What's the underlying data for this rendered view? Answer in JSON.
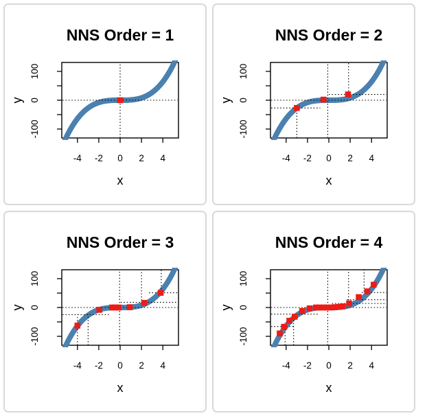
{
  "page": {
    "background_color": "#ffffff",
    "card_border_color": "#d9d9d9"
  },
  "styles": {
    "curve_color": "#4b81b0",
    "red_point_color": "#ed1c16",
    "segment_color": "#000000",
    "axis_color": "#000000"
  },
  "axes": {
    "xlabel": "x",
    "ylabel": "y",
    "xlim": [
      -5.4,
      5.4
    ],
    "ylim": [
      -131,
      131
    ],
    "x_ticks": [
      -4,
      -2,
      0,
      2,
      4
    ],
    "x_tick_labels": [
      "-4",
      "-2",
      "0",
      "2",
      "4"
    ],
    "y_ticks": [
      -100,
      -50,
      0,
      50,
      100
    ],
    "y_tick_labels": [
      "-100",
      "",
      "0",
      "",
      "100"
    ],
    "grid": false
  },
  "curve": {
    "description": "open-circle scatter of y = x^3",
    "formula": "y = x^3",
    "power": 3,
    "x_min": -5.15,
    "x_max": 5.15,
    "n_points": 210
  },
  "chart_data": [
    {
      "type": "scatter",
      "title": "NNS Order = 1",
      "red_points": [
        [
          0,
          0
        ]
      ],
      "v_lines": [
        {
          "x": 0,
          "y1": -131,
          "y2": 131
        }
      ],
      "h_lines": [
        {
          "y": 0,
          "x1": -5.4,
          "x2": 5.4
        }
      ]
    },
    {
      "type": "scatter",
      "title": "NNS Order = 2",
      "red_points": [
        [
          -3,
          -27
        ],
        [
          -0.5,
          2
        ],
        [
          1.8,
          20
        ]
      ],
      "v_lines": [
        {
          "x": -3,
          "y1": -131,
          "y2": -27
        },
        {
          "x": -0.1,
          "y1": -131,
          "y2": 131
        },
        {
          "x": 1.85,
          "y1": 20,
          "y2": 131
        }
      ],
      "h_lines": [
        {
          "y": 0,
          "x1": -5.4,
          "x2": 5.4
        },
        {
          "y": -27,
          "x1": -5.4,
          "x2": -0.8
        },
        {
          "y": 20,
          "x1": 0.0,
          "x2": 5.4
        }
      ]
    },
    {
      "type": "scatter",
      "title": "NNS Order = 3",
      "red_points": [
        [
          -4,
          -63
        ],
        [
          -1.95,
          -8
        ],
        [
          -0.75,
          0
        ],
        [
          -0.45,
          0
        ],
        [
          -0.15,
          0
        ],
        [
          0.9,
          1
        ],
        [
          2.25,
          16
        ],
        [
          3.8,
          51
        ]
      ],
      "v_lines": [
        {
          "x": -4,
          "y1": -131,
          "y2": -25
        },
        {
          "x": -3,
          "y1": -131,
          "y2": -25
        },
        {
          "x": -0.05,
          "y1": -131,
          "y2": 131
        },
        {
          "x": 2.0,
          "y1": 14,
          "y2": 131
        },
        {
          "x": 3.85,
          "y1": 53,
          "y2": 131
        }
      ],
      "h_lines": [
        {
          "y": 0,
          "x1": -5.4,
          "x2": 5.4
        },
        {
          "y": -25,
          "x1": -5.4,
          "x2": -0.9
        },
        {
          "y": 18,
          "x1": 0.05,
          "x2": 5.4
        },
        {
          "y": 51,
          "x1": 2.7,
          "x2": 5.4
        }
      ]
    },
    {
      "type": "scatter",
      "title": "NNS Order = 4",
      "red_points": [
        [
          -4.6,
          -90
        ],
        [
          -4.2,
          -67
        ],
        [
          -3.7,
          -46
        ],
        [
          -3.2,
          -32
        ],
        [
          -2.5,
          -12
        ],
        [
          -1.8,
          -3
        ],
        [
          -1.2,
          0
        ],
        [
          -0.85,
          0
        ],
        [
          -0.5,
          0
        ],
        [
          -0.15,
          0
        ],
        [
          0.2,
          0
        ],
        [
          0.55,
          1
        ],
        [
          0.9,
          2
        ],
        [
          1.3,
          4
        ],
        [
          1.9,
          14
        ],
        [
          2.8,
          36
        ],
        [
          3.6,
          56
        ],
        [
          4.2,
          79
        ]
      ],
      "v_lines": [
        {
          "x": -4.1,
          "y1": -131,
          "y2": -66
        },
        {
          "x": -3.3,
          "y1": -131,
          "y2": -23
        },
        {
          "x": -0.1,
          "y1": -131,
          "y2": 131
        },
        {
          "x": 1.85,
          "y1": 25,
          "y2": 131
        },
        {
          "x": 3.3,
          "y1": 55,
          "y2": 131
        }
      ],
      "h_lines": [
        {
          "y": 0,
          "x1": -5.4,
          "x2": 5.4
        },
        {
          "y": -23,
          "x1": -5.4,
          "x2": -0.9
        },
        {
          "y": -66,
          "x1": -5.4,
          "x2": -3.3
        },
        {
          "y": 14,
          "x1": 0.3,
          "x2": 5.4
        },
        {
          "y": 27,
          "x1": 1.7,
          "x2": 5.4
        },
        {
          "y": 52,
          "x1": 3.1,
          "x2": 5.4
        }
      ]
    }
  ]
}
